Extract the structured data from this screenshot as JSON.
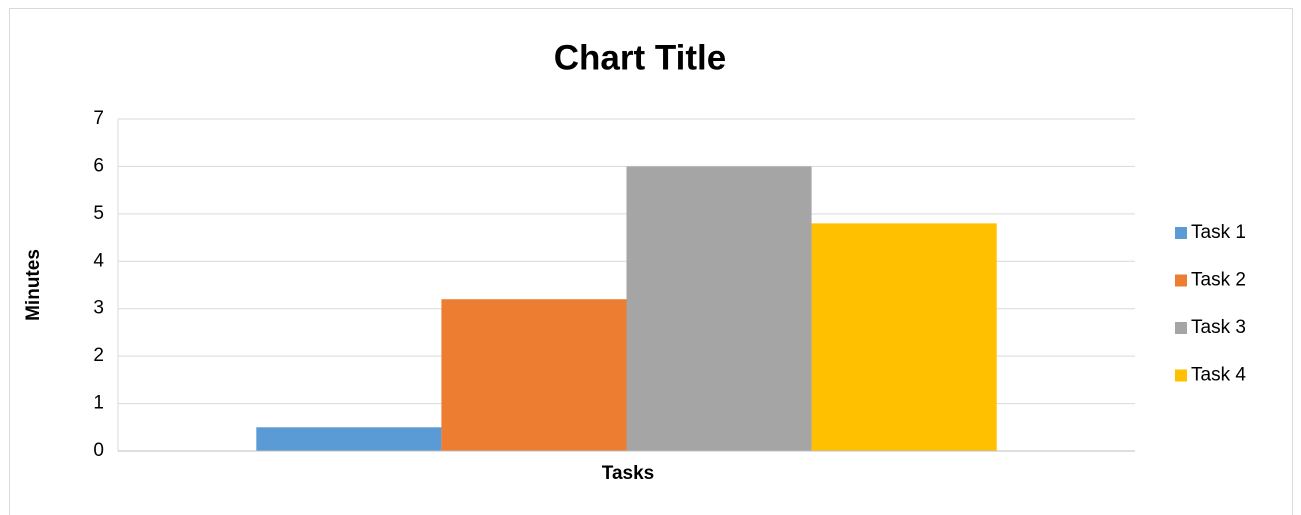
{
  "chart_data": {
    "type": "bar",
    "title": "Chart Title",
    "x_label": "Tasks",
    "y_label": "Minutes",
    "categories": [
      null
    ],
    "series": [
      {
        "name": "Task 1",
        "color": "#5b9bd5",
        "values": [
          0.5
        ]
      },
      {
        "name": "Task 2",
        "color": "#ed7d31",
        "values": [
          3.2
        ]
      },
      {
        "name": "Task 3",
        "color": "#a5a5a5",
        "values": [
          6
        ]
      },
      {
        "name": "Task 4",
        "color": "#ffc000",
        "values": [
          4.8
        ]
      }
    ],
    "ylim": [
      0,
      7
    ],
    "yticks": [
      0,
      1,
      2,
      3,
      4,
      5,
      6,
      7
    ],
    "grid": true,
    "legend": "right"
  }
}
